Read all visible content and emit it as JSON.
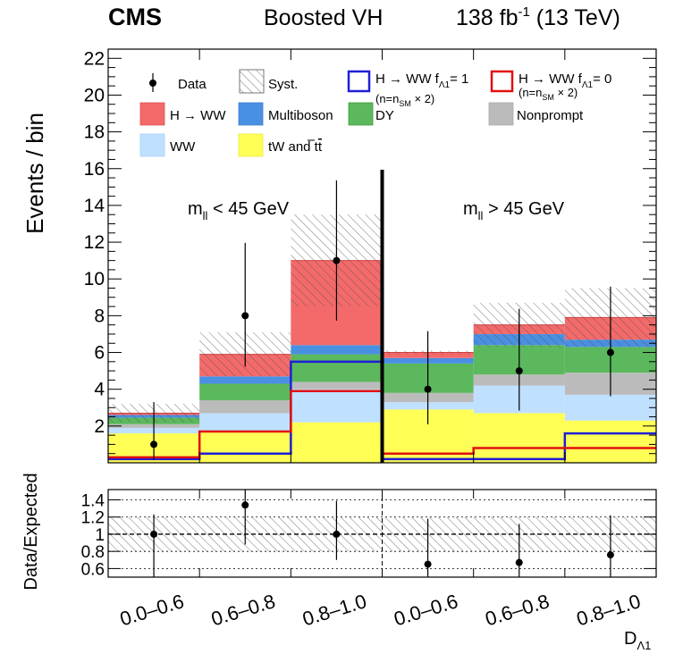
{
  "header": {
    "cms": "CMS",
    "analysis": "Boosted VH",
    "lumi": "138 fb",
    "lumi_sup": "-1",
    "energy": " (13 TeV)"
  },
  "regions": {
    "left": "m",
    "left_sub": "ll",
    "left_rest": " < 45 GeV",
    "right": "m",
    "right_sub": "ll",
    "right_rest": " > 45 GeV"
  },
  "legend": {
    "data": "Data",
    "syst": "Syst.",
    "bsm1_a": "H → WW f",
    "bsm1_sub": "Λ1",
    "bsm1_b": "= 1",
    "bsm1_note": "(n=n",
    "bsm1_note_sub": "SM",
    "bsm1_note_b": " × 2)",
    "bsm0_a": "H → WW f",
    "bsm0_sub": "Λ1",
    "bsm0_b": "= 0",
    "bsm0_note": "(n=n",
    "bsm0_note_sub": "SM",
    "bsm0_note_b": " × 2)",
    "hww": "H → WW",
    "multiboson": "Multiboson",
    "dy": "DY",
    "nonprompt": "Nonprompt",
    "ww": "WW",
    "top": "tW and t",
    "top_bar": "t"
  },
  "colors": {
    "top": "#ffff55",
    "ww": "#bfe0ff",
    "nonprompt": "#bbbbbb",
    "dy": "#5cb85c",
    "multiboson": "#4a90e2",
    "hww": "#f46a6a",
    "bsm1": "#1f1fd6",
    "bsm0": "#e01010"
  },
  "chart_data": [
    {
      "panel": "main",
      "type": "bar",
      "stacked": true,
      "categories": [
        "0.0–0.6",
        "0.6–0.8",
        "0.8–1.0",
        "0.0–0.6",
        "0.6–0.8",
        "0.8–1.0"
      ],
      "ylabel": "Events / bin",
      "ylim": [
        0,
        22.5
      ],
      "yticks": [
        2,
        4,
        6,
        8,
        10,
        12,
        14,
        16,
        18,
        20,
        22
      ],
      "series": [
        {
          "name": "tW and tt̄",
          "values": [
            1.6,
            1.7,
            2.2,
            2.9,
            2.7,
            2.3
          ]
        },
        {
          "name": "WW",
          "values": [
            0.3,
            1.0,
            1.8,
            0.4,
            1.5,
            1.4
          ]
        },
        {
          "name": "Nonprompt",
          "values": [
            0.2,
            0.7,
            0.4,
            0.5,
            0.6,
            1.2
          ]
        },
        {
          "name": "DY",
          "values": [
            0.35,
            0.9,
            1.5,
            1.6,
            1.6,
            1.4
          ]
        },
        {
          "name": "Multiboson",
          "values": [
            0.15,
            0.4,
            0.5,
            0.3,
            0.6,
            0.4
          ]
        },
        {
          "name": "H → WW",
          "values": [
            0.1,
            1.2,
            4.6,
            0.3,
            0.5,
            1.2
          ]
        }
      ],
      "syst_total": [
        3.2,
        7.1,
        13.5,
        6.1,
        8.7,
        9.5
      ],
      "bsm_fL1_1": [
        0.2,
        0.5,
        5.5,
        0.2,
        0.2,
        1.6
      ],
      "bsm_fL1_0": [
        0.3,
        1.7,
        3.9,
        0.5,
        0.8,
        0.8
      ],
      "data": [
        1,
        8,
        11,
        4,
        5,
        6
      ],
      "data_err_low": [
        0.83,
        2.77,
        3.27,
        1.91,
        2.16,
        2.38
      ],
      "data_err_high": [
        2.3,
        3.96,
        4.36,
        3.16,
        3.38,
        3.58
      ],
      "regions": [
        "m_ll < 45 GeV",
        "m_ll > 45 GeV"
      ]
    },
    {
      "panel": "ratio",
      "type": "scatter",
      "categories": [
        "0.0–0.6",
        "0.6–0.8",
        "0.8–1.0",
        "0.0–0.6",
        "0.6–0.8",
        "0.8–1.0"
      ],
      "ylabel": "Data/Expected",
      "xlabel": "D",
      "xlabel_sub": "Λ1",
      "ylim": [
        0.5,
        1.52
      ],
      "yticks": [
        0.6,
        0.8,
        1,
        1.2,
        1.4
      ],
      "ytick_labels": [
        "0.6",
        "0.8",
        "1",
        "1.2",
        "1.4"
      ],
      "values": [
        1.0,
        1.34,
        1.0,
        0.65,
        0.67,
        0.76
      ],
      "err_low": [
        1.0,
        0.46,
        0.3,
        0.65,
        0.67,
        0.76
      ],
      "err_high": [
        0.23,
        0.46,
        0.39,
        0.53,
        0.45,
        0.46
      ],
      "syst_band": [
        0.8,
        1.2
      ]
    }
  ]
}
